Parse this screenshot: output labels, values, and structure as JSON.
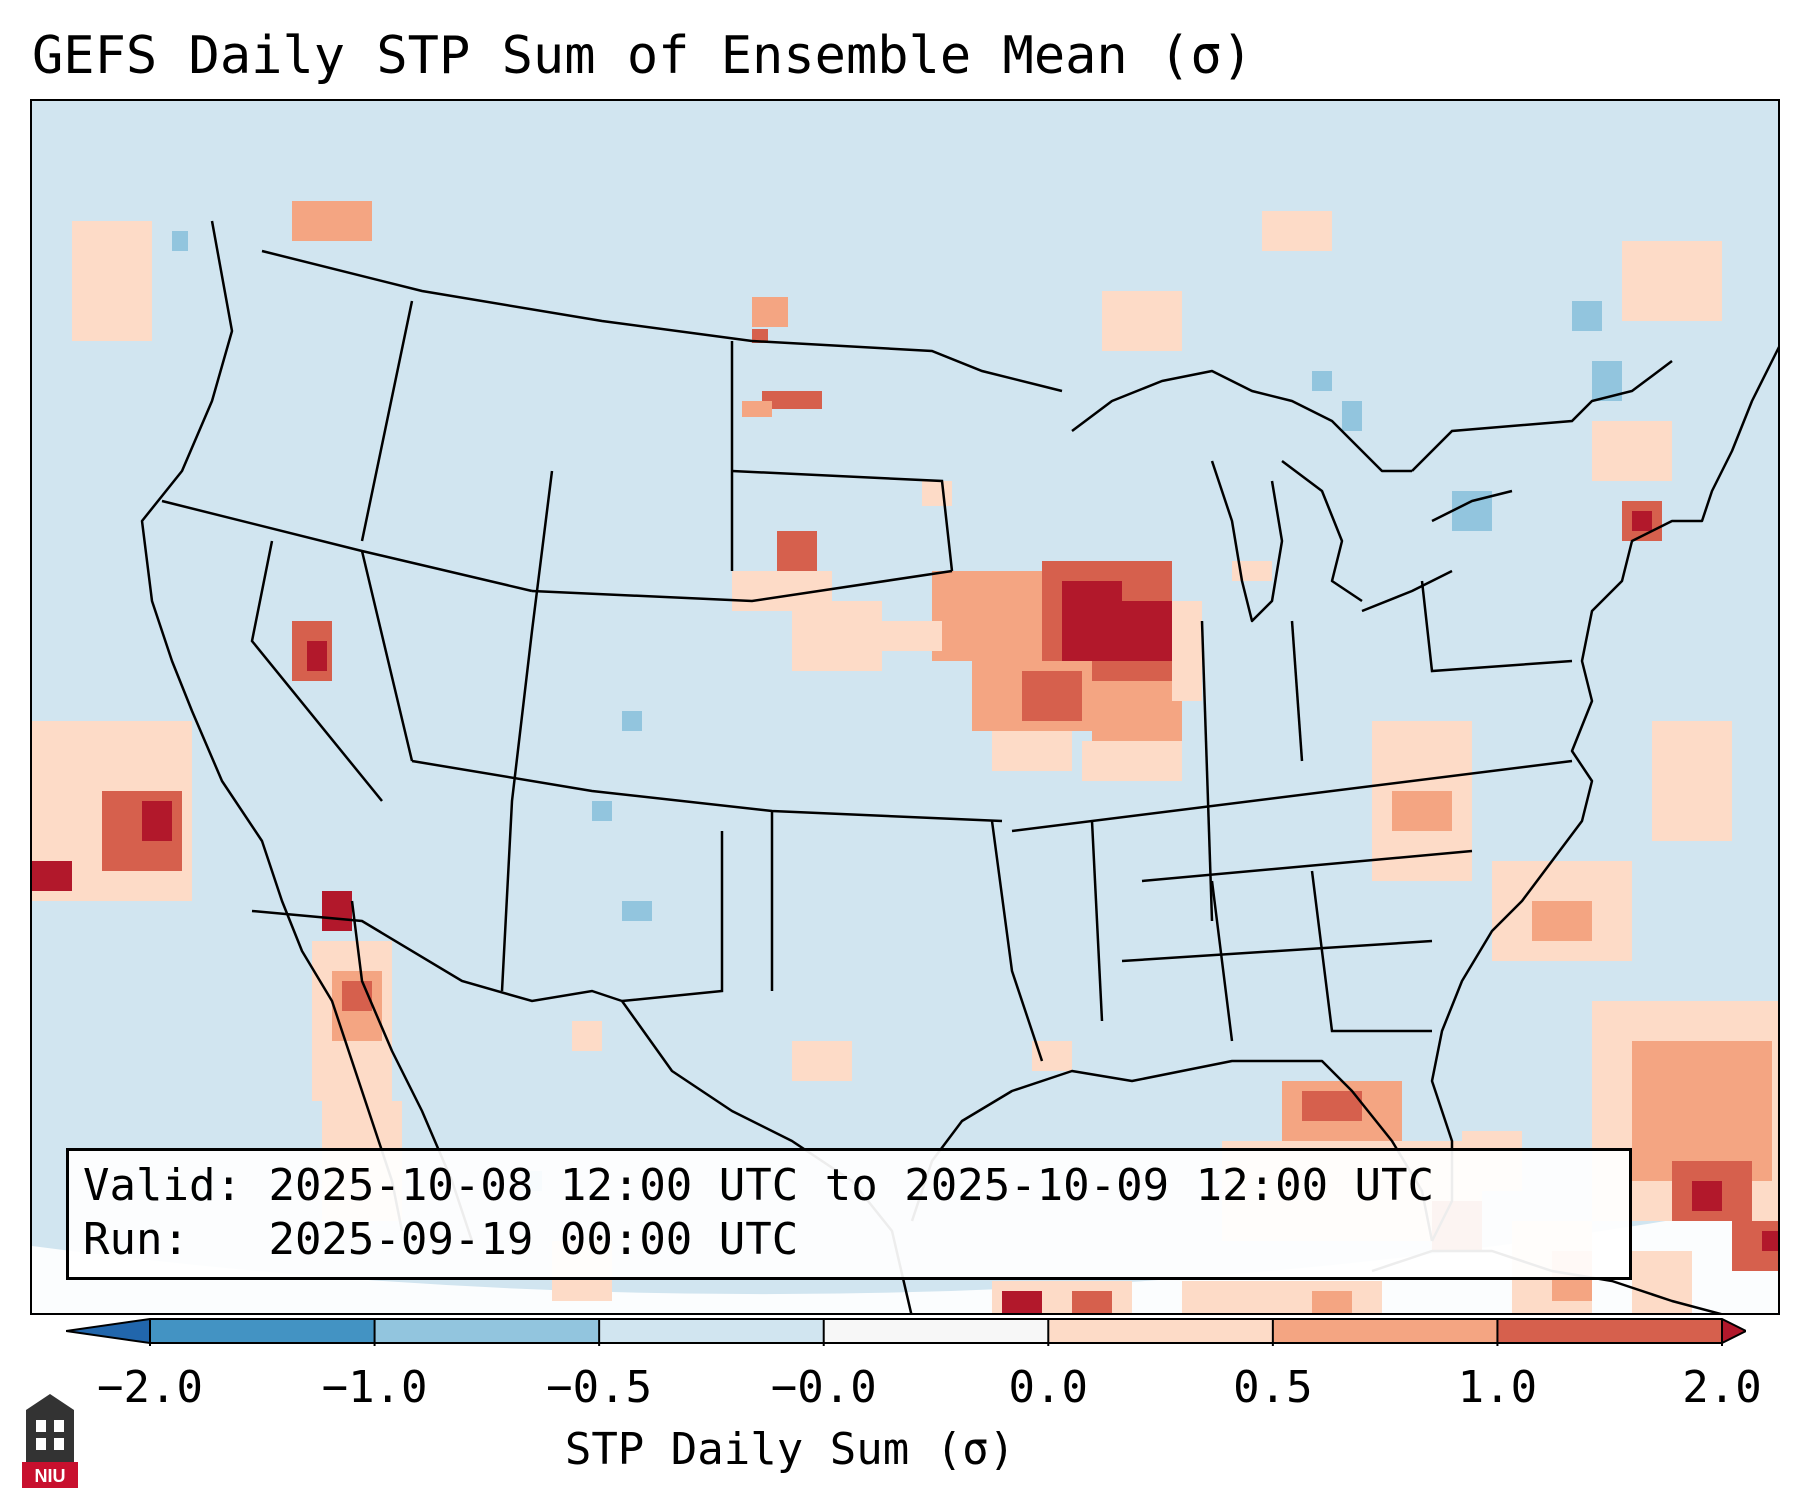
{
  "title": "GEFS Daily STP Sum of Ensemble Mean (σ)",
  "info": {
    "valid_label": "Valid:",
    "valid_range": "2025-10-08 12:00 UTC to 2025-10-09 12:00 UTC",
    "run_label": "Run:",
    "run_time": "2025-09-19 00:00 UTC"
  },
  "colorbar": {
    "label": "STP Daily Sum (σ)",
    "ticks": [
      "−2.0",
      "−1.0",
      "−0.5",
      "−0.0",
      "0.0",
      "0.5",
      "1.0",
      "2.0"
    ],
    "bins": [
      {
        "from": "-inf",
        "to": -2.0,
        "color": "#2166ac"
      },
      {
        "from": -2.0,
        "to": -1.0,
        "color": "#4393c3"
      },
      {
        "from": -1.0,
        "to": -0.5,
        "color": "#92c5de"
      },
      {
        "from": -0.5,
        "to": -0.0,
        "color": "#d1e5f0"
      },
      {
        "from": -0.0,
        "to": 0.0,
        "color": "#f7f7f7"
      },
      {
        "from": 0.0,
        "to": 0.5,
        "color": "#fddbc7"
      },
      {
        "from": 0.5,
        "to": 1.0,
        "color": "#f4a582"
      },
      {
        "from": 1.0,
        "to": 2.0,
        "color": "#d6604d"
      },
      {
        "from": 2.0,
        "to": "inf",
        "color": "#b2182b"
      }
    ]
  },
  "logo_text": "NIU",
  "colors": {
    "background_field": "#d1e5f0",
    "border_line": "#000000",
    "logo_red": "#c8102e"
  }
}
